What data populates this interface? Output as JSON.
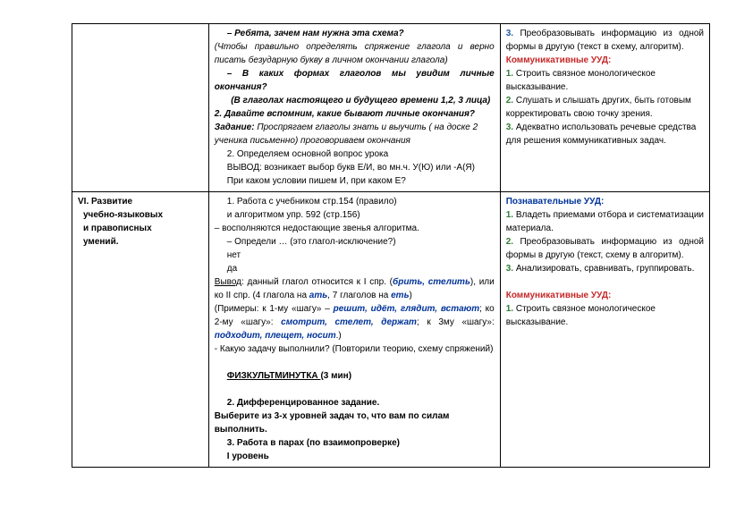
{
  "row1": {
    "col1": "",
    "mid": {
      "p1": "– Ребята, зачем нам нужна эта схема?",
      "p2": "(Чтобы правильно определять спряжение глагола и верно писать безударную букву в личном окончании глагола)",
      "p3": "– В каких формах глаголов мы увидим личные окончания?",
      "p4": "(В глаголах настоящего и будущего времени 1,2, 3 лица)",
      "p5a": "2. Давайте вспомним, какие бывают личные окончания?",
      "p5b": "Задание: ",
      "p5c": "Проспрягаем глаголы    знать и выучить ( на доске 2 ученика письменно)  проговориваем окончания",
      "p6": "2. Определяем основной вопрос урока",
      "p7": "ВЫВОД: возникает выбор букв Е/И, во мн.ч. У(Ю) или -А(Я)",
      "p8": "При каком условии пишем И, при каком Е?"
    },
    "right": {
      "r1_num": "3.",
      "r1": " Преобразовывать информацию из одной формы в другую (текст в схему, алгоритм).",
      "r2": "Коммуникативные УУД:",
      "r3n": "1.",
      "r3": " Строить связное монологическое высказывание.",
      "r4n": "2.",
      "r4": " Слушать и слышать других, быть готовым корректировать свою точку зрения.",
      "r5n": "3.",
      "r5": " Адекватно использовать речевые средства для решения коммуникативных задач."
    }
  },
  "row2": {
    "col1": {
      "l1": "VI. Развитие",
      "l2": "учебно-языковых",
      "l3": "и правописных",
      "l4": "умений."
    },
    "mid": {
      "p1": "1. Работа с учебником  стр.154 (правило)",
      "p2": " и алгоритмом упр. 592 (стр.156)",
      "p3": "– восполняются недостающие звенья алгоритма.",
      "p4": "– Определи … (это глагол-исключение?)",
      "p5": "нет",
      "p6": "да",
      "p7a": "Вывод",
      "p7b": ": данный глагол относится к I спр. (",
      "p7c": "брить, стелить",
      "p7d": "), или ко II спр. (4 глагола на ",
      "p7e": "ать",
      "p7f": ", 7 глаголов на ",
      "p7g": "еть",
      "p7h": ")",
      "p8a": "(Примеры: к 1-му «шагу» – ",
      "p8b": "решит, идёт, глядит, встают",
      "p8c": "; ко 2-му «шагу»: ",
      "p8d": "смотрит, стелет,  держат",
      "p8e": ";  к 3му «шагу»: ",
      "p8f": "подходит, плещет, носит",
      "p8g": ".)",
      "p9": "-  Какую задачу выполнили?  (Повторили теорию, схему спряжений)",
      "p10a": "ФИЗКУЛЬТМИНУТКА  ",
      "p10b": "(3 мин)",
      "p11": "2. Дифференцированное задание.",
      "p12": "Выберите из 3-х уровней задач то, что вам по силам выполнить.",
      "p13": "3. Работа в парах (по взаимопроверке)",
      "p14": "I  уровень"
    },
    "right": {
      "r1": "Познавательные УУД:",
      "r2n": "1.",
      "r2": " Владеть приемами отбора и систематизации материала.",
      "r3n": "2.",
      "r3": " Преобразовывать информацию из одной формы в другую (текст, схему в алгоритм).",
      "r4n": "3.",
      "r4": " Анализировать, сравнивать, группировать.",
      "r5": "Коммуникативные УУД:",
      "r6n": "1.",
      "r6": " Строить связное монологическое высказывание."
    }
  }
}
